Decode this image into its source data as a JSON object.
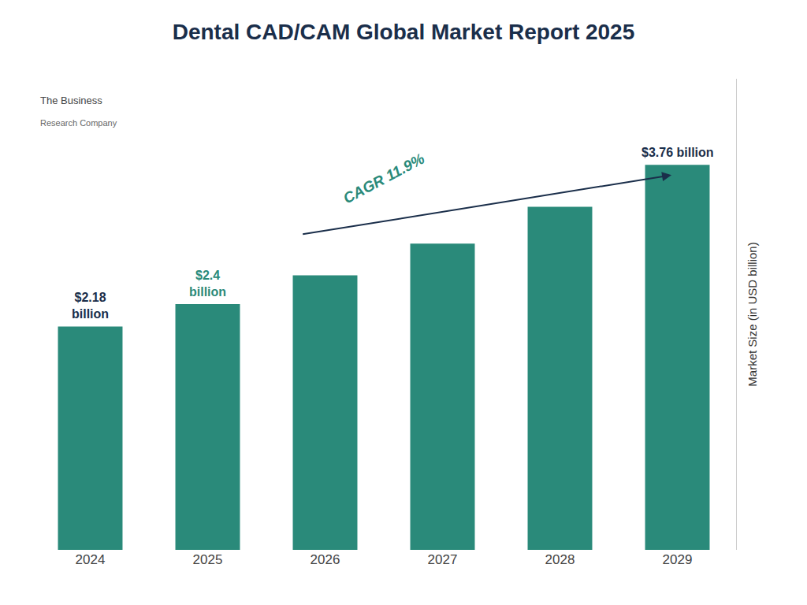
{
  "chart_data": {
    "type": "bar",
    "title": "Dental CAD/CAM Global Market Report 2025",
    "title_color": "#1a2e4a",
    "categories": [
      "2024",
      "2025",
      "2026",
      "2027",
      "2028",
      "2029"
    ],
    "values": [
      2.18,
      2.4,
      2.68,
      2.99,
      3.35,
      3.76
    ],
    "color": "#2a8a7a",
    "ylabel": "Market Size (in USD billion)",
    "ylim": [
      0,
      4.6
    ],
    "tick_labels": "x",
    "grid": false,
    "annotations": [
      {
        "text": "$2.18\nbillion",
        "category": "2024",
        "color": "#1a2e4a"
      },
      {
        "text": "$2.4\nbillion",
        "category": "2025",
        "color": "#2a8a7a"
      },
      {
        "text": "$3.76 billion",
        "category": "2029",
        "color": "#1a2e4a"
      },
      {
        "text": "CAGR 11.9%",
        "color": "#2a8a7a",
        "arrow": {
          "from": "2026",
          "to": "2029",
          "color": "#1a2e4a"
        }
      },
      {
        "text": "The Business"
      },
      {
        "text": "Research Company"
      }
    ]
  }
}
